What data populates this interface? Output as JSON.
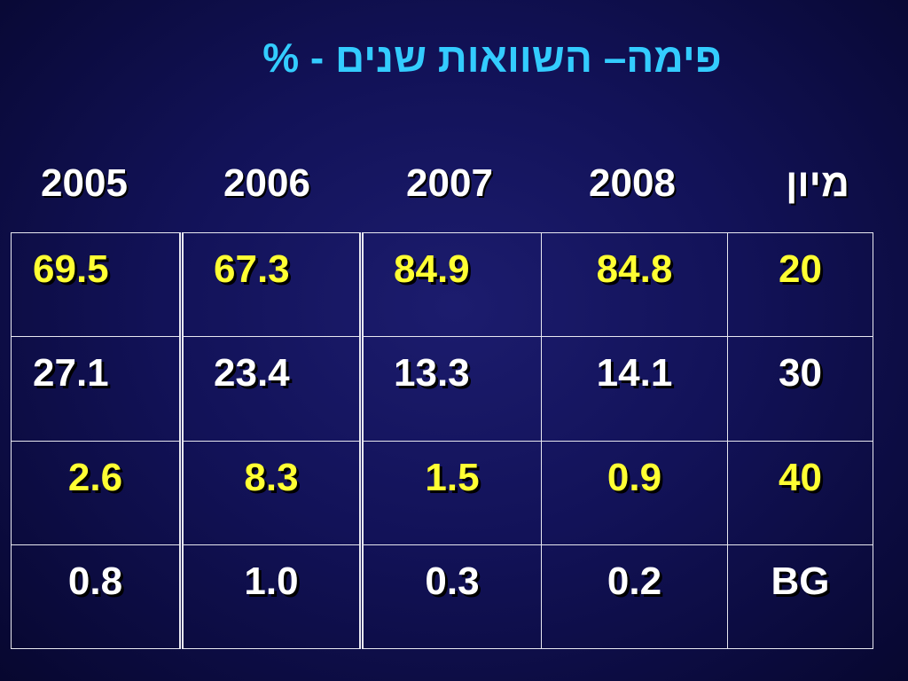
{
  "slide": {
    "title": "פימה– השוואות שנים - %"
  },
  "table": {
    "headers": [
      "2005",
      "2006",
      "2007",
      "2008",
      "מיון"
    ],
    "rows": [
      {
        "cells": [
          "69.5",
          "67.3",
          "84.9",
          "84.8",
          "20"
        ],
        "color": "#ffff33"
      },
      {
        "cells": [
          "27.1",
          "23.4",
          "13.3",
          "14.1",
          "30"
        ],
        "color": "#ffffff"
      },
      {
        "cells": [
          "2.6",
          "8.3",
          "1.5",
          "0.9",
          "40"
        ],
        "color": "#ffff33"
      },
      {
        "cells": [
          "0.8",
          "1.0",
          "0.3",
          "0.2",
          "BG"
        ],
        "color": "#ffffff"
      }
    ]
  },
  "colors": {
    "background": "#121258",
    "title": "#33ccff",
    "highlight": "#ffff33",
    "text": "#ffffff"
  }
}
